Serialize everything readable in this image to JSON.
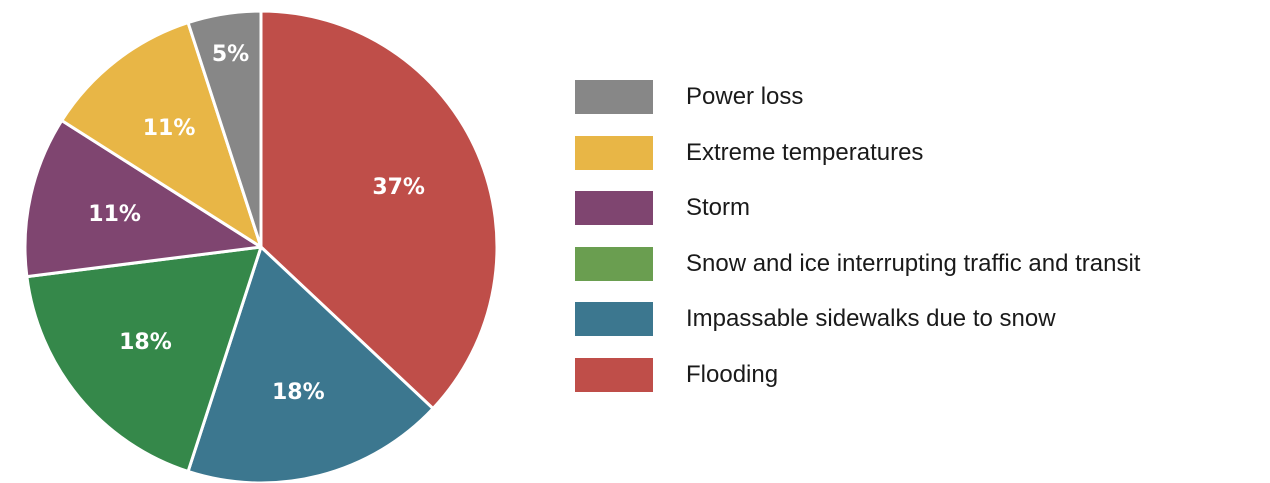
{
  "chart_data": {
    "type": "pie",
    "title": "",
    "slices": [
      {
        "label": "Flooding",
        "value": 37,
        "display": "37%",
        "color": "#bf4e49"
      },
      {
        "label": "Impassable sidewalks due to snow",
        "value": 18,
        "display": "18%",
        "color": "#3c778f"
      },
      {
        "label": "Snow and ice interrupting traffic and transit",
        "value": 18,
        "display": "18%",
        "color": "#35884a"
      },
      {
        "label": "Storm",
        "value": 11,
        "display": "11%",
        "color": "#7f4570"
      },
      {
        "label": "Extreme temperatures",
        "value": 11,
        "display": "11%",
        "color": "#e8b646"
      },
      {
        "label": "Power loss",
        "value": 5,
        "display": "5%",
        "color": "#878787"
      }
    ],
    "legend": {
      "position": "right",
      "items": [
        {
          "label": "Power loss",
          "color": "#878787"
        },
        {
          "label": "Extreme temperatures",
          "color": "#e8b646"
        },
        {
          "label": "Storm",
          "color": "#7f4570"
        },
        {
          "label": "Snow and ice interrupting traffic and transit",
          "color": "#6a9e50"
        },
        {
          "label": "Impassable sidewalks due to snow",
          "color": "#3c778f"
        },
        {
          "label": "Flooding",
          "color": "#bf4e49"
        }
      ]
    }
  }
}
